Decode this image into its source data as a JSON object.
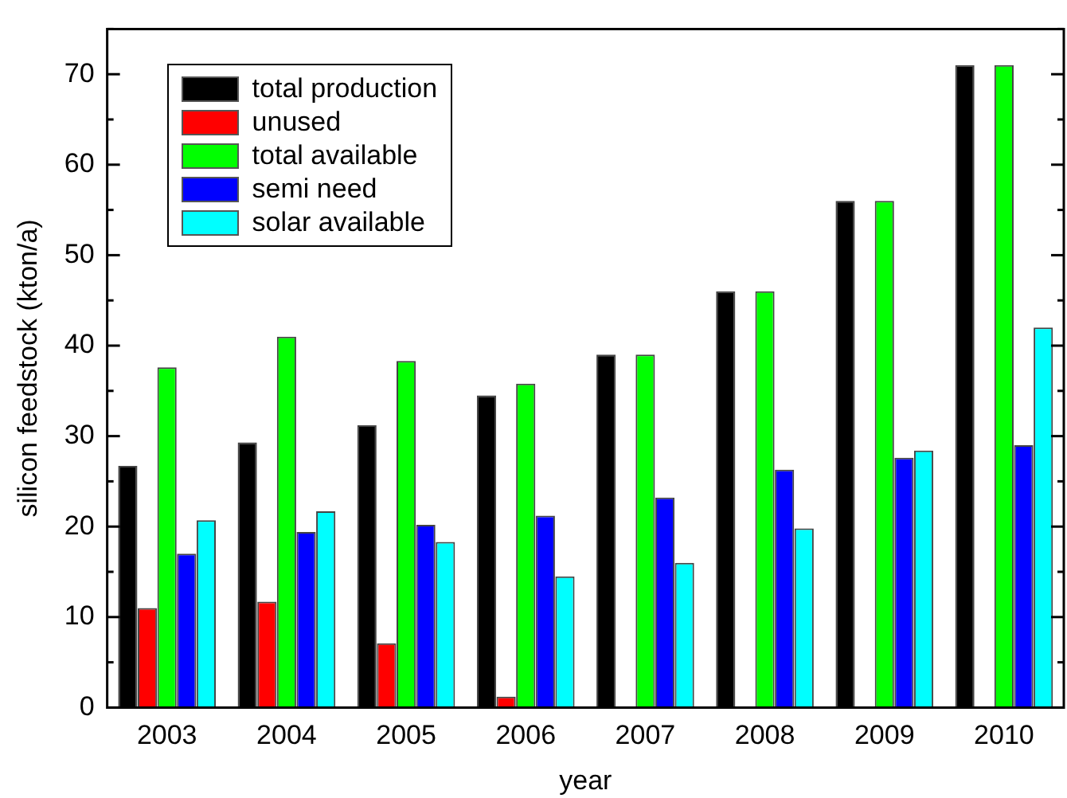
{
  "chart_data": {
    "type": "bar",
    "xlabel": "year",
    "ylabel": "silicon feedstock (kton/a)",
    "categories": [
      "2003",
      "2004",
      "2005",
      "2006",
      "2007",
      "2008",
      "2009",
      "2010"
    ],
    "series": [
      {
        "name": "total production",
        "color": "#000000",
        "values": [
          26.7,
          29.3,
          31.2,
          34.5,
          39,
          46,
          56,
          71
        ]
      },
      {
        "name": "unused",
        "color": "#ff0000",
        "values": [
          11,
          11.7,
          7.1,
          1.2,
          null,
          null,
          null,
          null
        ]
      },
      {
        "name": "total available",
        "color": "#00ff00",
        "values": [
          37.6,
          41,
          38.3,
          35.8,
          39,
          46,
          56,
          71
        ]
      },
      {
        "name": "semi need",
        "color": "#0000ff",
        "values": [
          17,
          19.4,
          20.2,
          21.2,
          23.2,
          26.3,
          27.6,
          29
        ]
      },
      {
        "name": "solar available",
        "color": "#00ffff",
        "values": [
          20.7,
          21.7,
          18.3,
          14.5,
          16,
          19.8,
          28.4,
          42
        ]
      }
    ],
    "ylim": [
      0,
      75
    ],
    "yticks": [
      0,
      {
        "value": 5,
        "label": null
      },
      10,
      {
        "value": 15,
        "label": null
      },
      20,
      {
        "value": 25,
        "label": null
      },
      30,
      {
        "value": 35,
        "label": null
      },
      40,
      {
        "value": 45,
        "label": null
      },
      50,
      {
        "value": 55,
        "label": null
      },
      60,
      {
        "value": 65,
        "label": null
      },
      70,
      {
        "value": 75,
        "label": null
      }
    ],
    "grid": false,
    "legend": "top left"
  }
}
